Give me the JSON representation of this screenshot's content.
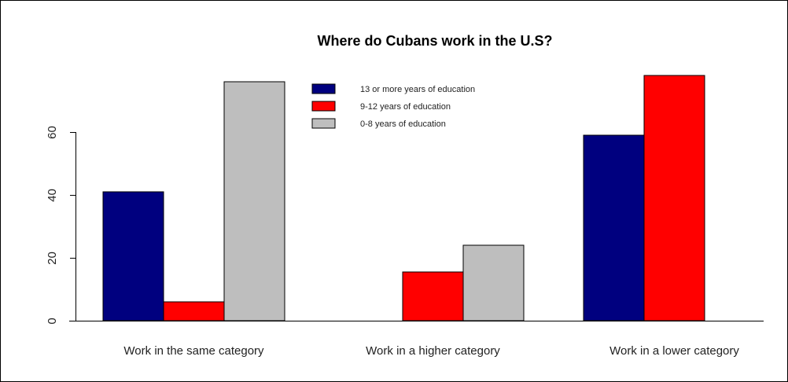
{
  "chart_data": {
    "type": "bar",
    "title": "Where do Cubans work in the U.S?",
    "xlabel": "",
    "ylabel": "",
    "categories": [
      "Work in the same category",
      "Work in a higher category",
      "Work in a lower category"
    ],
    "series": [
      {
        "name": "13 or more years of education",
        "color": "#00007F",
        "values": [
          41,
          0,
          59
        ]
      },
      {
        "name": "9-12 years of education",
        "color": "#FF0000",
        "values": [
          6,
          15.5,
          78
        ]
      },
      {
        "name": "0-8 years of education",
        "color": "#BEBEBE",
        "values": [
          76,
          24,
          0
        ]
      }
    ],
    "yticks": [
      "0",
      "20",
      "40",
      "60"
    ],
    "ylim": [
      0,
      80
    ],
    "legend_position": "top-center",
    "grid": false
  }
}
